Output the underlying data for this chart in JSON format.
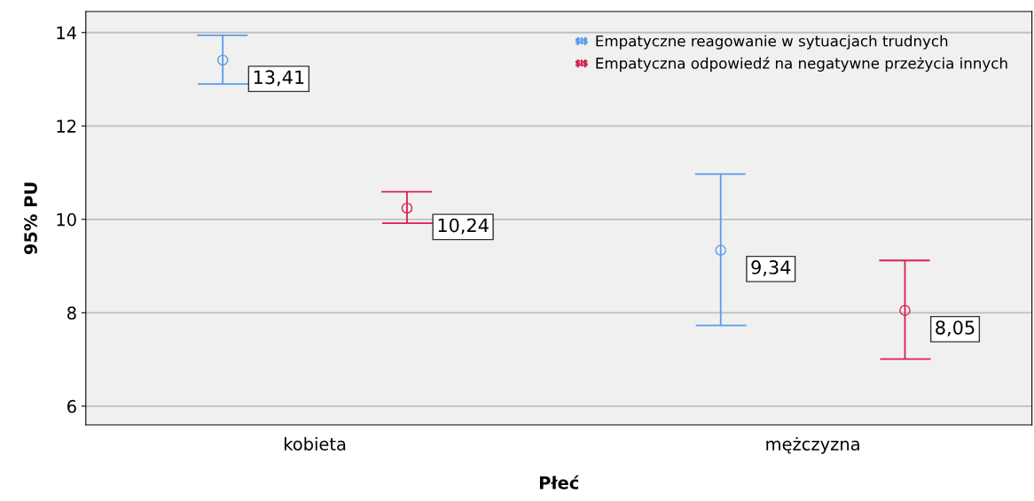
{
  "chart_data": {
    "type": "scatter",
    "xlabel": "Płeć",
    "ylabel": "95% PU",
    "categories": [
      "kobieta",
      "mężczyzna"
    ],
    "series": [
      {
        "name": "Empatyczne reagowanie w sytuacjach trudnych",
        "color": "#5a9be8",
        "values": [
          13.41,
          9.34
        ],
        "errors": [
          [
            12.9,
            13.94
          ],
          [
            7.73,
            10.97
          ]
        ],
        "value_labels": [
          "13,41",
          "9,34"
        ]
      },
      {
        "name": "Empatyczna odpowiedź na negatywne przeżycia innych",
        "color": "#d81f4e",
        "values": [
          10.24,
          8.05
        ],
        "errors": [
          [
            9.92,
            10.59
          ],
          [
            7.01,
            9.12
          ]
        ],
        "value_labels": [
          "10,24",
          "8,05"
        ]
      }
    ],
    "ylim": [
      5.6,
      14.45
    ],
    "yticks": [
      6,
      8,
      10,
      12,
      14
    ],
    "grid": "y",
    "legend": "top right",
    "marker": "circle"
  }
}
